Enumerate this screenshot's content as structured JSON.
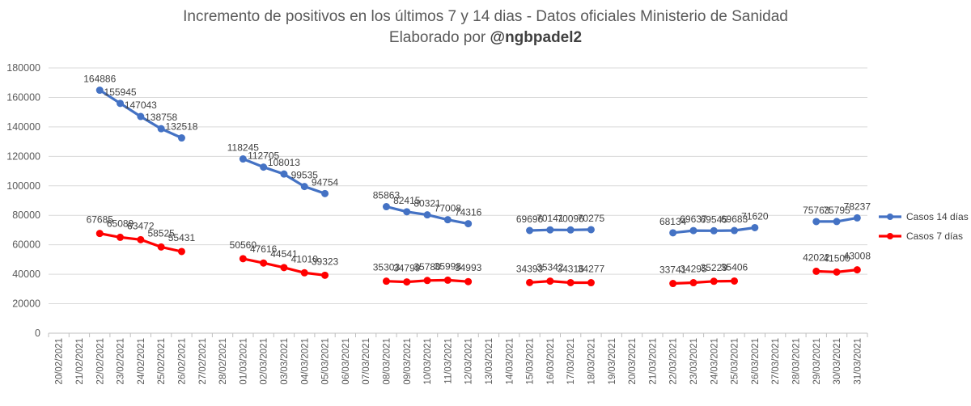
{
  "chart_data": {
    "type": "line",
    "title_line1": "Incremento de positivos en los últimos 7 y 14 dias - Datos oficiales Ministerio de Sanidad",
    "title_line2_prefix": "Elaborado por ",
    "title_line2_handle": "@ngbpadel2",
    "xlabel": "",
    "ylabel": "",
    "ylim": [
      0,
      180000
    ],
    "yticks": [
      0,
      20000,
      40000,
      60000,
      80000,
      100000,
      120000,
      140000,
      160000,
      180000
    ],
    "grid": true,
    "legend_position": "right",
    "categories": [
      "20/02/2021",
      "21/02/2021",
      "22/02/2021",
      "23/02/2021",
      "24/02/2021",
      "25/02/2021",
      "26/02/2021",
      "27/02/2021",
      "28/02/2021",
      "01/03/2021",
      "02/03/2021",
      "03/03/2021",
      "04/03/2021",
      "05/03/2021",
      "06/03/2021",
      "07/03/2021",
      "08/03/2021",
      "09/03/2021",
      "10/03/2021",
      "11/03/2021",
      "12/03/2021",
      "13/03/2021",
      "14/03/2021",
      "15/03/2021",
      "16/03/2021",
      "17/03/2021",
      "18/03/2021",
      "19/03/2021",
      "20/03/2021",
      "21/03/2021",
      "22/03/2021",
      "23/03/2021",
      "24/03/2021",
      "25/03/2021",
      "26/03/2021",
      "27/03/2021",
      "28/03/2021",
      "29/03/2021",
      "30/03/2021",
      "31/03/2021"
    ],
    "series": [
      {
        "name": "Casos 14 días",
        "color": "#4472c4",
        "values": [
          null,
          null,
          164886,
          155945,
          147043,
          138758,
          132518,
          null,
          null,
          118245,
          112705,
          108013,
          99535,
          94754,
          null,
          null,
          85863,
          82415,
          80321,
          77008,
          74316,
          null,
          null,
          69696,
          70141,
          70096,
          70275,
          null,
          null,
          null,
          68134,
          69637,
          69545,
          69683,
          71620,
          null,
          null,
          75763,
          75795,
          78237
        ],
        "label_texts": [
          null,
          null,
          "164886",
          "155945",
          "147043",
          "138758",
          "132518",
          null,
          null,
          "118245",
          "112705",
          "108013",
          "99535",
          "94754",
          null,
          null,
          "85863",
          "82415",
          "80321",
          "77008",
          "74316",
          null,
          null,
          "69696",
          "70141",
          "70096",
          "70275",
          null,
          null,
          null,
          "68134",
          "69637",
          "69545",
          "69683",
          "71620",
          null,
          null,
          "75763",
          "75795",
          "78237"
        ]
      },
      {
        "name": "Casos 7 días",
        "color": "#ff0000",
        "values": [
          null,
          null,
          67685,
          65089,
          63472,
          58525,
          55431,
          null,
          null,
          50560,
          47616,
          44541,
          41010,
          39323,
          null,
          null,
          35303,
          34799,
          35780,
          35998,
          34993,
          null,
          null,
          34393,
          35342,
          34316,
          34277,
          null,
          null,
          null,
          33741,
          34295,
          35229,
          35406,
          null,
          null,
          null,
          42022,
          41500,
          43008
        ],
        "label_texts": [
          null,
          null,
          "67685",
          "65089",
          "63472",
          "58525",
          "55431",
          null,
          null,
          "50560",
          "47616",
          "44541",
          "41010",
          "39323",
          null,
          null,
          "35303",
          "34799",
          "35780",
          "35998",
          "34993",
          null,
          null,
          "34393",
          "35342",
          "34316",
          "34277",
          null,
          null,
          null,
          "33741",
          "34295",
          "35229",
          "35406",
          null,
          null,
          null,
          "42022",
          "41500",
          "43008"
        ]
      }
    ]
  }
}
